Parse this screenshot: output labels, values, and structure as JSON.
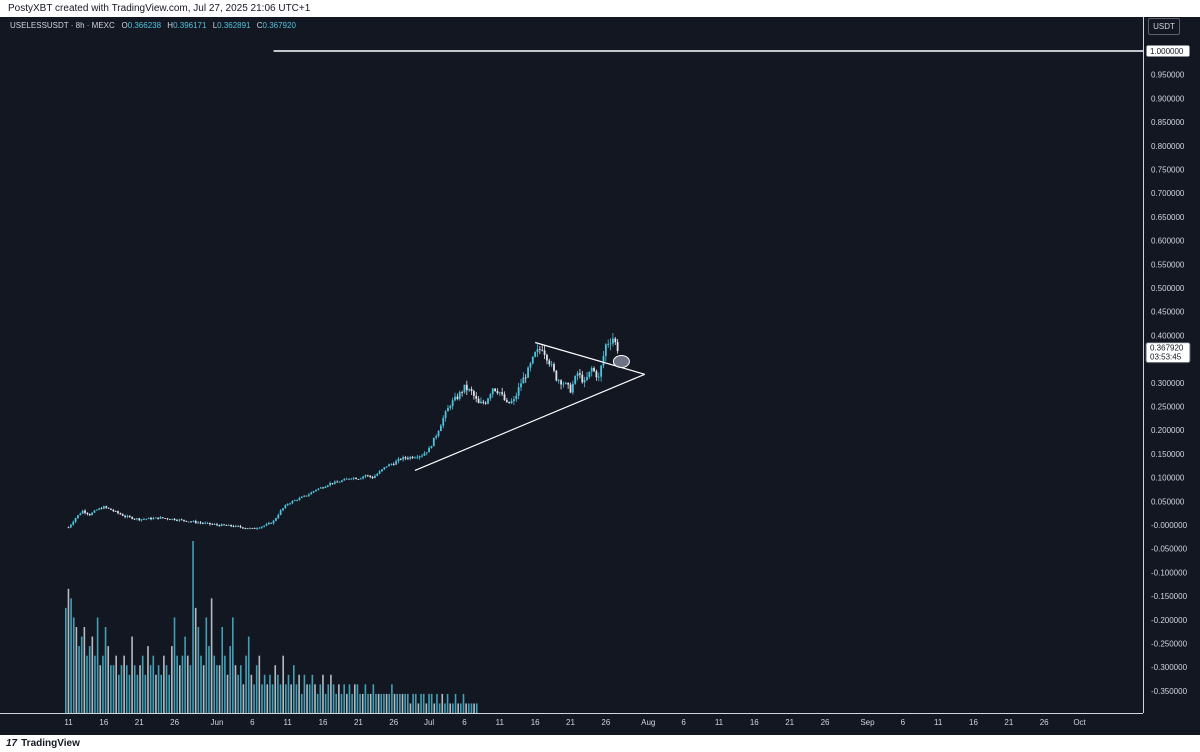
{
  "header": {
    "credit": "PostyXBT created with TradingView.com, Jul 27, 2025 21:06 UTC+1"
  },
  "legend": {
    "symbol": "USELESSUSDT · 8h · MEXC",
    "o_label": "O",
    "o_value": "0.366238",
    "h_label": "H",
    "h_value": "0.396171",
    "l_label": "L",
    "l_value": "0.362891",
    "c_label": "C",
    "c_value": "0.367920"
  },
  "unit": "USDT",
  "footer": {
    "brand": "TradingView"
  },
  "colors": {
    "background": "#131722",
    "up": "#4fc3dc",
    "down": "#e0e3eb",
    "line": "#ffffff",
    "text": "#d1d4dc"
  },
  "chart_data": {
    "type": "candlestick",
    "y_ticks": [
      "0.950000",
      "0.900000",
      "0.850000",
      "0.800000",
      "0.750000",
      "0.700000",
      "0.650000",
      "0.600000",
      "0.550000",
      "0.500000",
      "0.450000",
      "0.400000",
      "0.350000",
      "0.300000",
      "0.250000",
      "0.200000",
      "0.150000",
      "0.100000",
      "0.050000",
      "-0.000000",
      "-0.050000",
      "-0.100000",
      "-0.150000",
      "-0.200000",
      "-0.250000",
      "-0.300000",
      "-0.350000"
    ],
    "ylim": [
      -0.4,
      1.04
    ],
    "horizontal_line": {
      "value": 1.0,
      "label": "1.000000"
    },
    "last_price": {
      "value": 0.36792,
      "label": "0.367920",
      "countdown": "03:53:45"
    },
    "x_ticks": [
      {
        "label": "11",
        "d": -20
      },
      {
        "label": "16",
        "d": -15
      },
      {
        "label": "21",
        "d": -10
      },
      {
        "label": "26",
        "d": -5
      },
      {
        "label": "Jun",
        "d": 1
      },
      {
        "label": "6",
        "d": 6
      },
      {
        "label": "11",
        "d": 11
      },
      {
        "label": "16",
        "d": 16
      },
      {
        "label": "21",
        "d": 21
      },
      {
        "label": "26",
        "d": 26
      },
      {
        "label": "Jul",
        "d": 31
      },
      {
        "label": "6",
        "d": 36
      },
      {
        "label": "11",
        "d": 41
      },
      {
        "label": "16",
        "d": 46
      },
      {
        "label": "21",
        "d": 51
      },
      {
        "label": "26",
        "d": 56
      },
      {
        "label": "Aug",
        "d": 62
      },
      {
        "label": "6",
        "d": 67
      },
      {
        "label": "11",
        "d": 72
      },
      {
        "label": "16",
        "d": 77
      },
      {
        "label": "21",
        "d": 82
      },
      {
        "label": "26",
        "d": 87
      },
      {
        "label": "Sep",
        "d": 93
      },
      {
        "label": "6",
        "d": 98
      },
      {
        "label": "11",
        "d": 103
      },
      {
        "label": "16",
        "d": 108
      },
      {
        "label": "21",
        "d": 113
      },
      {
        "label": "26",
        "d": 118
      },
      {
        "label": "Oct",
        "d": 123
      }
    ],
    "close_path": [
      [
        -20,
        -0.005
      ],
      [
        -19,
        0.015
      ],
      [
        -18,
        0.03
      ],
      [
        -17,
        0.022
      ],
      [
        -16,
        0.032
      ],
      [
        -15,
        0.038
      ],
      [
        -14,
        0.032
      ],
      [
        -12,
        0.018
      ],
      [
        -10,
        0.012
      ],
      [
        -7,
        0.015
      ],
      [
        -5,
        0.012
      ],
      [
        -3,
        0.008
      ],
      [
        -1,
        0.004
      ],
      [
        1,
        0.0
      ],
      [
        3,
        -0.002
      ],
      [
        5,
        -0.006
      ],
      [
        6,
        -0.008
      ],
      [
        8,
        0.0
      ],
      [
        9,
        0.008
      ],
      [
        10,
        0.03
      ],
      [
        11,
        0.045
      ],
      [
        12,
        0.052
      ],
      [
        13,
        0.058
      ],
      [
        14,
        0.065
      ],
      [
        15,
        0.075
      ],
      [
        16,
        0.08
      ],
      [
        17,
        0.088
      ],
      [
        18,
        0.09
      ],
      [
        19,
        0.095
      ],
      [
        20,
        0.1
      ],
      [
        21,
        0.098
      ],
      [
        22,
        0.105
      ],
      [
        23,
        0.1
      ],
      [
        24,
        0.112
      ],
      [
        25,
        0.125
      ],
      [
        26,
        0.13
      ],
      [
        27,
        0.14
      ],
      [
        28,
        0.142
      ],
      [
        29,
        0.145
      ],
      [
        30,
        0.148
      ],
      [
        31,
        0.16
      ],
      [
        32,
        0.19
      ],
      [
        33,
        0.225
      ],
      [
        34,
        0.255
      ],
      [
        35,
        0.27
      ],
      [
        36,
        0.29
      ],
      [
        37,
        0.28
      ],
      [
        38,
        0.255
      ],
      [
        39,
        0.26
      ],
      [
        40,
        0.29
      ],
      [
        41,
        0.28
      ],
      [
        42,
        0.255
      ],
      [
        43,
        0.262
      ],
      [
        44,
        0.3
      ],
      [
        45,
        0.325
      ],
      [
        46,
        0.36
      ],
      [
        47,
        0.375
      ],
      [
        48,
        0.345
      ],
      [
        49,
        0.31
      ],
      [
        50,
        0.3
      ],
      [
        51,
        0.285
      ],
      [
        52,
        0.32
      ],
      [
        53,
        0.3
      ],
      [
        54,
        0.33
      ],
      [
        55,
        0.31
      ],
      [
        56,
        0.38
      ],
      [
        57,
        0.395
      ],
      [
        57.8,
        0.368
      ]
    ],
    "volume": [
      0.11,
      0.13,
      0.12,
      0.1,
      0.09,
      0.07,
      0.08,
      0.09,
      0.06,
      0.07,
      0.08,
      0.06,
      0.1,
      0.05,
      0.06,
      0.09,
      0.07,
      0.05,
      0.05,
      0.06,
      0.04,
      0.05,
      0.06,
      0.05,
      0.04,
      0.08,
      0.05,
      0.04,
      0.05,
      0.06,
      0.04,
      0.07,
      0.05,
      0.06,
      0.04,
      0.05,
      0.04,
      0.06,
      0.05,
      0.04,
      0.07,
      0.1,
      0.06,
      0.05,
      0.06,
      0.08,
      0.06,
      0.05,
      0.18,
      0.11,
      0.09,
      0.06,
      0.05,
      0.1,
      0.07,
      0.12,
      0.06,
      0.05,
      0.05,
      0.09,
      0.06,
      0.04,
      0.07,
      0.1,
      0.05,
      0.04,
      0.05,
      0.03,
      0.06,
      0.08,
      0.04,
      0.03,
      0.05,
      0.06,
      0.03,
      0.04,
      0.03,
      0.04,
      0.03,
      0.05,
      0.04,
      0.03,
      0.06,
      0.03,
      0.04,
      0.03,
      0.05,
      0.03,
      0.04,
      0.02,
      0.04,
      0.03,
      0.03,
      0.04,
      0.03,
      0.02,
      0.03,
      0.04,
      0.02,
      0.03,
      0.04,
      0.03,
      0.02,
      0.03,
      0.02,
      0.03,
      0.02,
      0.03,
      0.02,
      0.03,
      0.03,
      0.02,
      0.02,
      0.03,
      0.02,
      0.02,
      0.03,
      0.02,
      0.02,
      0.02,
      0.02,
      0.02,
      0.02,
      0.03,
      0.02,
      0.02,
      0.02,
      0.02,
      0.02,
      0.02,
      0.01,
      0.02,
      0.02,
      0.01,
      0.02,
      0.02,
      0.01,
      0.02,
      0.02,
      0.01,
      0.02,
      0.01,
      0.02,
      0.01,
      0.02,
      0.01,
      0.01,
      0.02,
      0.01,
      0.01,
      0.02,
      0.01,
      0.01,
      0.01,
      0.01,
      0.01
    ],
    "drawings": {
      "triangle_upper": [
        [
          46,
          0.385
        ],
        [
          61.5,
          0.318
        ]
      ],
      "triangle_lower": [
        [
          29,
          0.115
        ],
        [
          61.5,
          0.318
        ]
      ],
      "horizontal_line_start": 9,
      "retest_marker": [
        58.2,
        0.345
      ]
    }
  }
}
